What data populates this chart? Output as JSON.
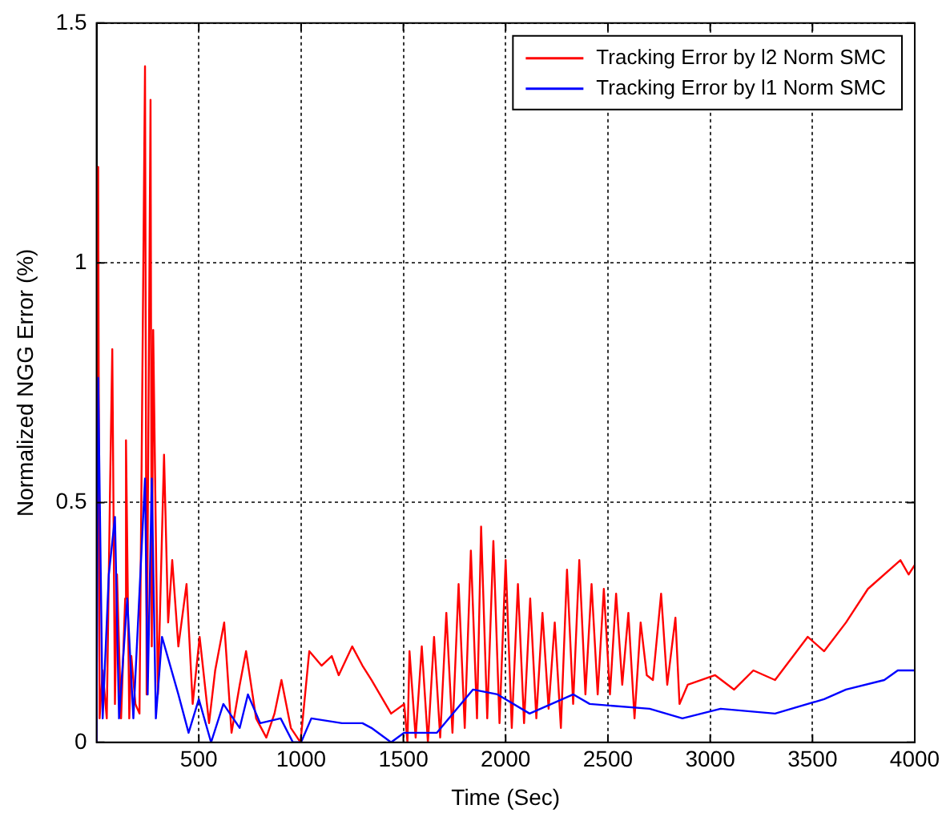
{
  "chart_data": {
    "type": "line",
    "xlabel": "Time (Sec)",
    "ylabel": "Normalized NGG Error (%)",
    "xlim": [
      0,
      4000
    ],
    "xticks": [
      500,
      1000,
      1500,
      2000,
      2500,
      3000,
      3500,
      4000
    ],
    "ylim": [
      0,
      1.5
    ],
    "yticks": [
      0,
      0.5,
      1,
      1.5
    ],
    "grid": true,
    "legend": "top right",
    "marker": "none",
    "line_style": "solid",
    "series": [
      {
        "name": "Tracking Error by l2 Norm SMC",
        "color": "#ff0000",
        "x": [
          0,
          8,
          15,
          30,
          50,
          65,
          77,
          90,
          100,
          120,
          140,
          144,
          160,
          170,
          190,
          210,
          237,
          245,
          264,
          270,
          277,
          300,
          330,
          350,
          370,
          400,
          440,
          470,
          504,
          550,
          580,
          624,
          660,
          700,
          731,
          780,
          830,
          870,
          904,
          950,
          997,
          1040,
          1100,
          1150,
          1184,
          1250,
          1300,
          1344,
          1440,
          1504,
          1520,
          1530,
          1560,
          1590,
          1620,
          1650,
          1680,
          1710,
          1740,
          1770,
          1800,
          1830,
          1860,
          1880,
          1910,
          1940,
          1970,
          2000,
          2030,
          2060,
          2090,
          2120,
          2150,
          2180,
          2210,
          2240,
          2270,
          2300,
          2330,
          2360,
          2390,
          2420,
          2450,
          2480,
          2510,
          2540,
          2570,
          2600,
          2630,
          2660,
          2690,
          2720,
          2760,
          2790,
          2830,
          2850,
          2890,
          3024,
          3117,
          3211,
          3317,
          3477,
          3557,
          3664,
          3771,
          3930,
          3970,
          4000
        ],
        "values": [
          0,
          1.2,
          0.05,
          0.15,
          0.05,
          0.5,
          0.82,
          0.08,
          0.35,
          0.05,
          0.3,
          0.63,
          0.05,
          0.18,
          0.08,
          0.06,
          1.41,
          0.1,
          1.34,
          0.2,
          0.86,
          0.1,
          0.6,
          0.25,
          0.38,
          0.2,
          0.33,
          0.08,
          0.22,
          0.04,
          0.15,
          0.25,
          0.02,
          0.12,
          0.19,
          0.05,
          0.01,
          0.06,
          0.13,
          0.03,
          0,
          0.19,
          0.16,
          0.18,
          0.14,
          0.2,
          0.16,
          0.13,
          0.06,
          0.08,
          0,
          0.19,
          0.01,
          0.2,
          0,
          0.22,
          0.01,
          0.27,
          0.02,
          0.33,
          0.03,
          0.4,
          0.05,
          0.45,
          0.05,
          0.42,
          0.04,
          0.38,
          0.03,
          0.33,
          0.04,
          0.3,
          0.05,
          0.27,
          0.07,
          0.25,
          0.03,
          0.36,
          0.08,
          0.38,
          0.1,
          0.33,
          0.1,
          0.32,
          0.1,
          0.31,
          0.12,
          0.27,
          0.05,
          0.25,
          0.14,
          0.13,
          0.31,
          0.12,
          0.26,
          0.08,
          0.12,
          0.14,
          0.11,
          0.15,
          0.13,
          0.22,
          0.19,
          0.25,
          0.32,
          0.38,
          0.35,
          0.37
        ]
      },
      {
        "name": "Tracking Error by l1 Norm SMC",
        "color": "#0000ff",
        "x": [
          0,
          8,
          30,
          60,
          90,
          110,
          150,
          180,
          237,
          250,
          270,
          290,
          320,
          400,
          450,
          500,
          560,
          620,
          700,
          740,
          800,
          900,
          960,
          1000,
          1050,
          1200,
          1300,
          1344,
          1440,
          1504,
          1664,
          1840,
          1960,
          2117,
          2331,
          2411,
          2704,
          2864,
          3051,
          3317,
          3557,
          3664,
          3851,
          3917,
          4000
        ],
        "values": [
          0,
          0.76,
          0.05,
          0.35,
          0.47,
          0.05,
          0.3,
          0.05,
          0.55,
          0.1,
          0.55,
          0.05,
          0.22,
          0.1,
          0.02,
          0.09,
          0,
          0.08,
          0.03,
          0.1,
          0.04,
          0.05,
          0,
          0,
          0.05,
          0.04,
          0.04,
          0.03,
          0,
          0.02,
          0.02,
          0.11,
          0.1,
          0.06,
          0.1,
          0.08,
          0.07,
          0.05,
          0.07,
          0.06,
          0.09,
          0.11,
          0.13,
          0.15,
          0.15
        ]
      }
    ]
  }
}
